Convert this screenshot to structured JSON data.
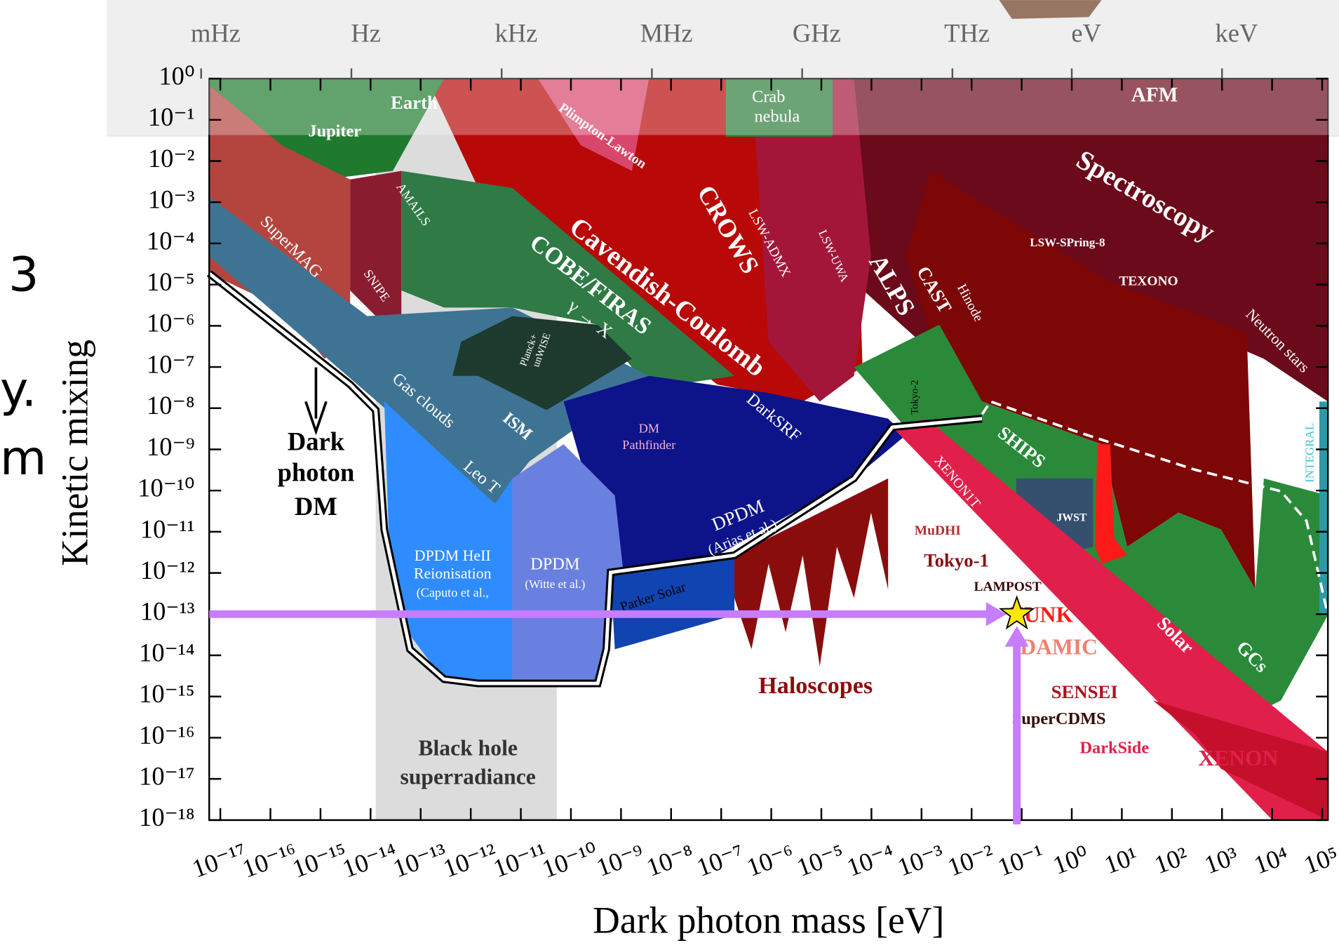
{
  "chart_data": {
    "type": "region-limits",
    "y_label": "Kinetic mixing",
    "x_label": "Dark photon mass [eV]",
    "log_x": true,
    "log_y": true,
    "xlim": [
      6e-18,
      130000.0
    ],
    "ylim": [
      1e-18,
      1
    ],
    "xticks": [
      {
        "value": 1e-17,
        "label": "10⁻¹⁷"
      },
      {
        "value": 1e-16,
        "label": "10⁻¹⁶"
      },
      {
        "value": 1e-15,
        "label": "10⁻¹⁵"
      },
      {
        "value": 1e-14,
        "label": "10⁻¹⁴"
      },
      {
        "value": 1e-13,
        "label": "10⁻¹³"
      },
      {
        "value": 1e-12,
        "label": "10⁻¹²"
      },
      {
        "value": 1e-11,
        "label": "10⁻¹¹"
      },
      {
        "value": 1e-10,
        "label": "10⁻¹⁰"
      },
      {
        "value": 1e-09,
        "label": "10⁻⁹"
      },
      {
        "value": 1e-08,
        "label": "10⁻⁸"
      },
      {
        "value": 1e-07,
        "label": "10⁻⁷"
      },
      {
        "value": 1e-06,
        "label": "10⁻⁶"
      },
      {
        "value": 1e-05,
        "label": "10⁻⁵"
      },
      {
        "value": 0.0001,
        "label": "10⁻⁴"
      },
      {
        "value": 0.001,
        "label": "10⁻³"
      },
      {
        "value": 0.01,
        "label": "10⁻²"
      },
      {
        "value": 0.1,
        "label": "10⁻¹"
      },
      {
        "value": 1,
        "label": "10⁰"
      },
      {
        "value": 10,
        "label": "10¹"
      },
      {
        "value": 100,
        "label": "10²"
      },
      {
        "value": 1000,
        "label": "10³"
      },
      {
        "value": 10000,
        "label": "10⁴"
      },
      {
        "value": 100000,
        "label": "10⁵"
      }
    ],
    "yticks": [
      {
        "value": 1,
        "label": "10⁰"
      },
      {
        "value": 0.1,
        "label": "10⁻¹"
      },
      {
        "value": 0.01,
        "label": "10⁻²"
      },
      {
        "value": 0.001,
        "label": "10⁻³"
      },
      {
        "value": 0.0001,
        "label": "10⁻⁴"
      },
      {
        "value": 1e-05,
        "label": "10⁻⁵"
      },
      {
        "value": 1e-06,
        "label": "10⁻⁶"
      },
      {
        "value": 1e-07,
        "label": "10⁻⁷"
      },
      {
        "value": 1e-08,
        "label": "10⁻⁸"
      },
      {
        "value": 1e-09,
        "label": "10⁻⁹"
      },
      {
        "value": 1e-10,
        "label": "10⁻¹⁰"
      },
      {
        "value": 1e-11,
        "label": "10⁻¹¹"
      },
      {
        "value": 1e-12,
        "label": "10⁻¹²"
      },
      {
        "value": 1e-13,
        "label": "10⁻¹³"
      },
      {
        "value": 1e-14,
        "label": "10⁻¹⁴"
      },
      {
        "value": 1e-15,
        "label": "10⁻¹⁵"
      },
      {
        "value": 1e-16,
        "label": "10⁻¹⁶"
      },
      {
        "value": 1e-17,
        "label": "10⁻¹⁷"
      },
      {
        "value": 1e-18,
        "label": "10⁻¹⁸"
      }
    ],
    "top_ticks": [
      {
        "value": 4.14e-18,
        "label": "mHz"
      },
      {
        "value": 4.14e-15,
        "label": "Hz"
      },
      {
        "value": 4.14e-12,
        "label": "kHz"
      },
      {
        "value": 4.14e-09,
        "label": "MHz"
      },
      {
        "value": 4.14e-06,
        "label": "GHz"
      },
      {
        "value": 0.00414,
        "label": "THz"
      },
      {
        "value": 1,
        "label": "eV"
      },
      {
        "value": 1000,
        "label": "keV"
      }
    ],
    "marker": {
      "x": 0.08,
      "y": 1e-13,
      "color": "#ffe600"
    },
    "arrow_color": "#c77dff",
    "region_labels": [
      "Earth",
      "Jupiter",
      "Plimpton-Lawton",
      "Crab",
      "nebula",
      "AFM",
      "Spectroscopy",
      "SuperMAG",
      "AMAILS",
      "SNIPE",
      "Cavendish-Coulomb",
      "COBE/FIRAS",
      "γ → X",
      "CROWS",
      "LSW-ADMX",
      "LSW-UWA",
      "ALPS",
      "CAST",
      "Hinode",
      "LSW-SPring-8",
      "TEXONO",
      "Neutron stars",
      "Planck+",
      "unWISE",
      "Gas clouds",
      "ISM",
      "Leo T",
      "DM",
      "Pathfinder",
      "DarkSRF",
      "Tokyo-2",
      "SHIPS",
      "XENON1T",
      "Dark",
      "photon",
      "DM",
      "DPDM",
      "(Arias et al.)",
      "DPDM HeII",
      "Reionisation",
      "(Caputo et al.,",
      "DPDM",
      "(Witte et al.)",
      "Parker Solar",
      "MuDHI",
      "Tokyo-1",
      "LAMPOST",
      "JWST",
      "FUNK",
      "DAMIC",
      "Haloscopes",
      "SENSEI",
      "SuperCDMS",
      "DarkSide",
      "XENON",
      "Solar",
      "GCs",
      "INTEGRAL",
      "Black hole",
      "superradiance"
    ],
    "slide_fragments": [
      "3",
      "y.",
      "m"
    ]
  }
}
